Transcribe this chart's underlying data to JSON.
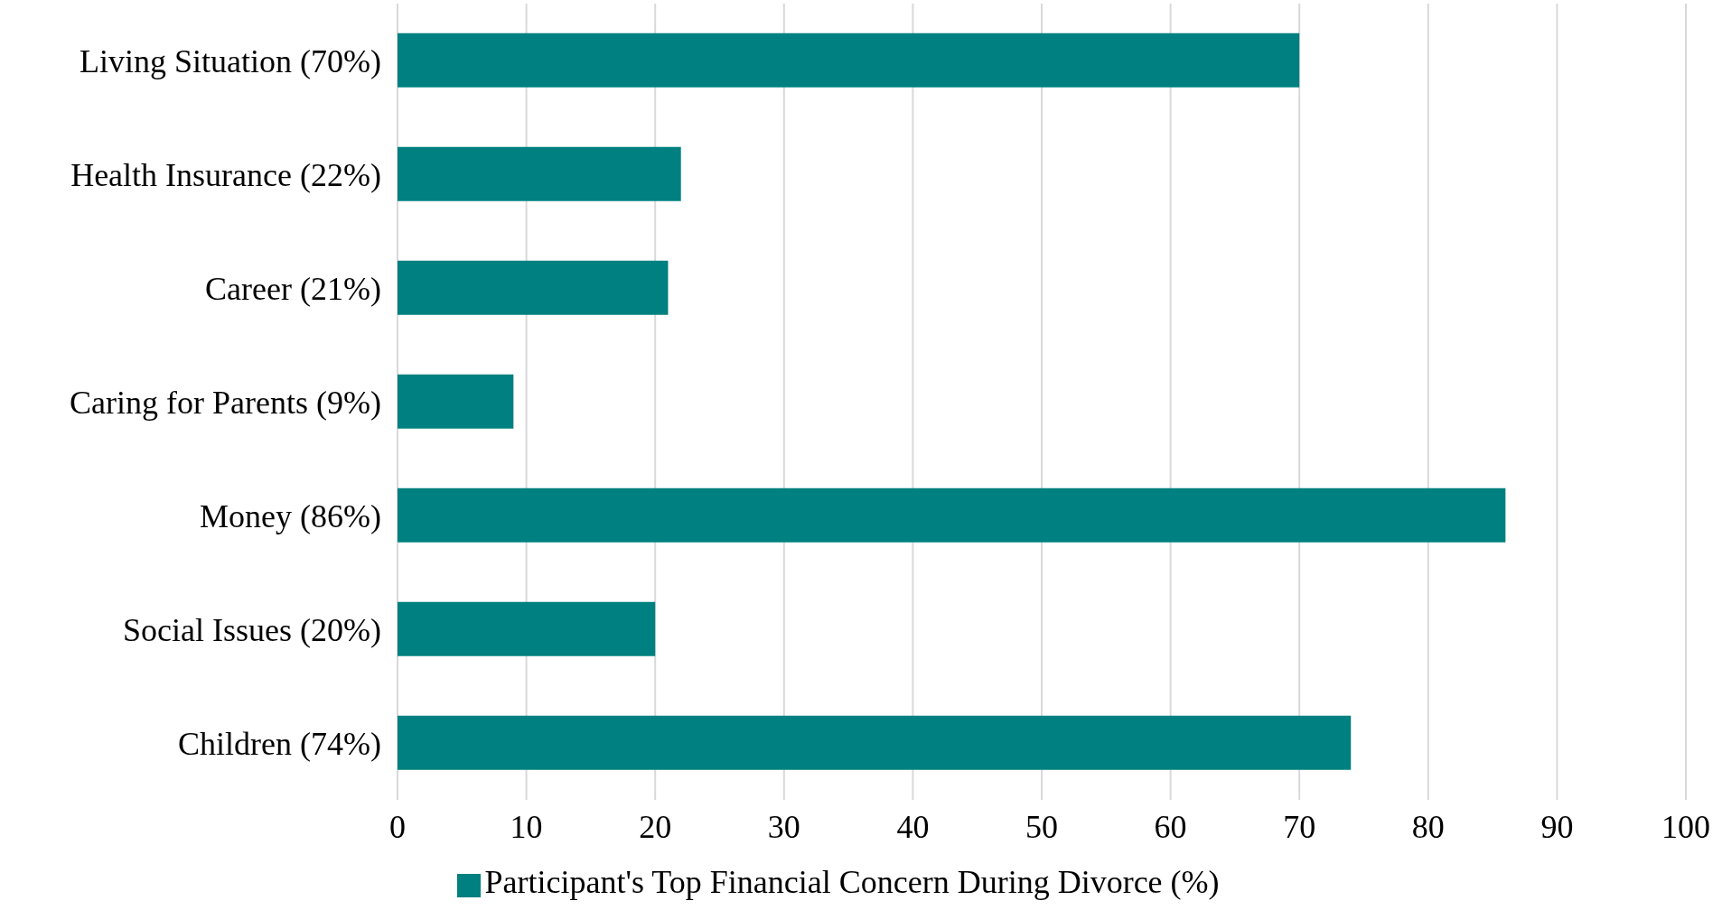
{
  "chart_data": {
    "type": "bar",
    "orientation": "horizontal",
    "categories": [
      "Living Situation (70%)",
      "Health Insurance (22%)",
      "Career (21%)",
      "Caring for Parents (9%)",
      "Money (86%)",
      "Social Issues (20%)",
      "Children (74%)"
    ],
    "series": [
      {
        "name": "Participant's Top Financial Concern During Divorce (%)",
        "color": "#008080",
        "values": [
          70,
          22,
          21,
          9,
          86,
          20,
          74
        ]
      }
    ],
    "xlim": [
      0,
      100
    ],
    "xticks": [
      0,
      10,
      20,
      30,
      40,
      50,
      60,
      70,
      80,
      90,
      100
    ],
    "grid": "x",
    "legend": "bottom"
  }
}
